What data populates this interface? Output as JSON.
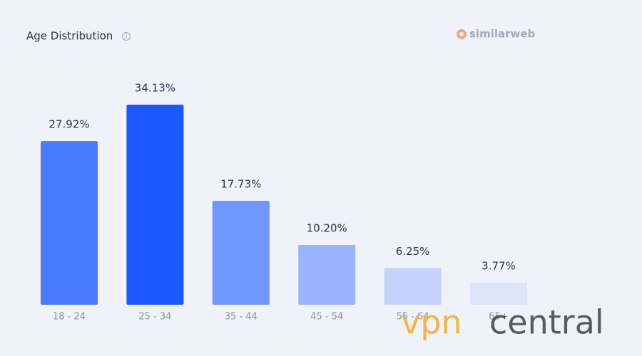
{
  "chart_data": {
    "type": "bar",
    "title": "Age Distribution",
    "brand": "similarweb",
    "categories": [
      "18 - 24",
      "25 - 34",
      "35 - 44",
      "45 - 54",
      "55 - 64",
      "65+"
    ],
    "values": [
      27.92,
      34.13,
      17.73,
      10.2,
      6.25,
      3.77
    ],
    "value_labels": [
      "27.92%",
      "34.13%",
      "17.73%",
      "10.20%",
      "6.25%",
      "3.77%"
    ],
    "colors": [
      "#4a7bff",
      "#1c58ff",
      "#6e96ff",
      "#9ab4fd",
      "#c5d2fb",
      "#dde3f8"
    ],
    "watermark": [
      "vpn",
      "central"
    ]
  }
}
